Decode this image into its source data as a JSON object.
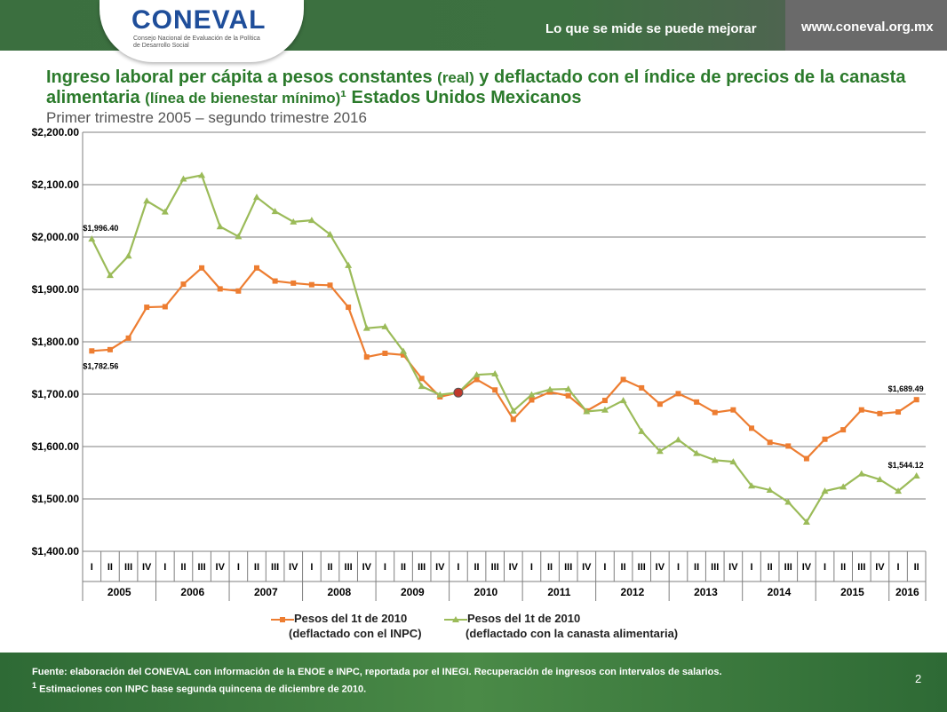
{
  "header": {
    "logo_text": "CONEVAL",
    "logo_subtitle": "Consejo Nacional de Evaluación de la Política de Desarrollo Social",
    "slogan": "Lo que se mide se puede mejorar",
    "website": "www.coneval.org.mx"
  },
  "title": {
    "part1": "Ingreso laboral per cápita a pesos constantes ",
    "part2": "(real)",
    "part3": " y deflactado con el índice de precios de la canasta alimentaria ",
    "part4": "(línea de bienestar mínimo)",
    "part5": "¹ Estados Unidos Mexicanos",
    "subtitle": "Primer trimestre 2005 – segundo trimestre 2016"
  },
  "legend": {
    "series1_line1": "Pesos del 1t  de 2010",
    "series1_line2": "(deflactado con el INPC)",
    "series2_line1": "Pesos del 1t de 2010",
    "series2_line2": "(deflactado con la canasta alimentaria)"
  },
  "footer": {
    "source": "Fuente: elaboración del CONEVAL con información de la ENOE e INPC, reportada por el INEGI. Recuperación de ingresos con intervalos de salarios.",
    "note_mark": "1",
    "note": "Estimaciones con INPC base segunda quincena de diciembre de 2010.",
    "page": "2"
  },
  "chart_data": {
    "type": "line",
    "ylim": [
      1400,
      2200
    ],
    "yticks": [
      "$1,400.00",
      "$1,500.00",
      "$1,600.00",
      "$1,700.00",
      "$1,800.00",
      "$1,900.00",
      "$2,000.00",
      "$2,100.00",
      "$2,200.00"
    ],
    "quarters": [
      "I",
      "II",
      "III",
      "IV",
      "I",
      "II",
      "III",
      "IV",
      "I",
      "II",
      "III",
      "IV",
      "I",
      "II",
      "III",
      "IV",
      "I",
      "II",
      "III",
      "IV",
      "I",
      "II",
      "III",
      "IV",
      "I",
      "II",
      "III",
      "IV",
      "I",
      "II",
      "III",
      "IV",
      "I",
      "II",
      "III",
      "IV",
      "I",
      "II",
      "III",
      "IV",
      "I",
      "II",
      "III",
      "IV",
      "I",
      "II"
    ],
    "years": [
      {
        "label": "2005",
        "n": 4
      },
      {
        "label": "2006",
        "n": 4
      },
      {
        "label": "2007",
        "n": 4
      },
      {
        "label": "2008",
        "n": 4
      },
      {
        "label": "2009",
        "n": 4
      },
      {
        "label": "2010",
        "n": 4
      },
      {
        "label": "2011",
        "n": 4
      },
      {
        "label": "2012",
        "n": 4
      },
      {
        "label": "2013",
        "n": 4
      },
      {
        "label": "2014",
        "n": 4
      },
      {
        "label": "2015",
        "n": 4
      },
      {
        "label": "2016",
        "n": 2
      }
    ],
    "grid": true,
    "series": [
      {
        "name": "Pesos del 1t  de 2010 (deflactado con el INPC)",
        "color": "#ed7d31",
        "marker": "square",
        "values": [
          1782.56,
          1785,
          1807,
          1866,
          1867,
          1910,
          1941,
          1901,
          1897,
          1941,
          1916,
          1912,
          1909,
          1908,
          1866,
          1771,
          1778,
          1775,
          1730,
          1695,
          1703,
          1728,
          1708,
          1652,
          1689,
          1704,
          1697,
          1668,
          1688,
          1728,
          1712,
          1681,
          1701,
          1685,
          1665,
          1670,
          1635,
          1608,
          1601,
          1577,
          1614,
          1632,
          1670,
          1663,
          1666,
          1689.49
        ]
      },
      {
        "name": "Pesos del 1t de 2010 (deflactado con la canasta alimentaria)",
        "color": "#9bbb59",
        "marker": "triangle",
        "values": [
          1996.4,
          1927,
          1964,
          2069,
          2048,
          2111,
          2118,
          2020,
          2001,
          2076,
          2049,
          2029,
          2032,
          2005,
          1946,
          1826,
          1829,
          1782,
          1715,
          1699,
          1703,
          1737,
          1739,
          1668,
          1699,
          1709,
          1710,
          1667,
          1670,
          1688,
          1629,
          1591,
          1613,
          1587,
          1574,
          1571,
          1525,
          1517,
          1494,
          1456,
          1515,
          1523,
          1548,
          1537,
          1515,
          1544.12
        ]
      }
    ],
    "data_labels": [
      {
        "series": 0,
        "index": 0,
        "text": "$1,782.56",
        "pos": "below"
      },
      {
        "series": 1,
        "index": 0,
        "text": "$1,996.40",
        "pos": "above"
      },
      {
        "series": 0,
        "index": 45,
        "text": "$1,689.49",
        "pos": "above"
      },
      {
        "series": 1,
        "index": 45,
        "text": "$1,544.12",
        "pos": "above"
      }
    ],
    "highlight": {
      "index": 20,
      "value": 1703,
      "color": "#c0392b"
    }
  }
}
